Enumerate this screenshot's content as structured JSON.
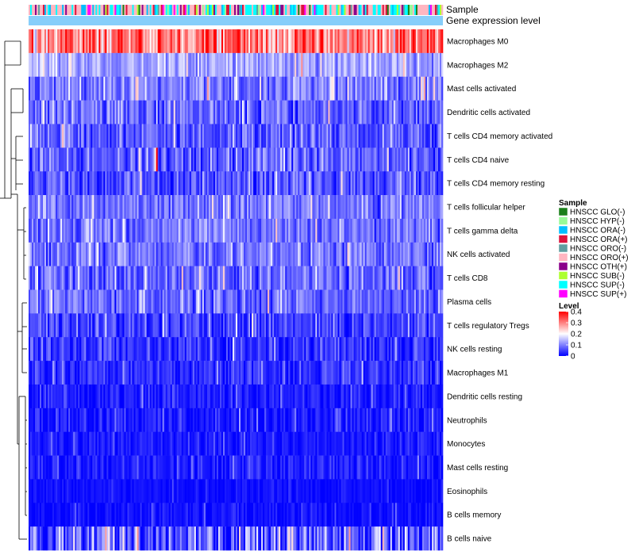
{
  "chart_data": {
    "type": "heatmap",
    "annotation_tracks": [
      {
        "name": "Sample"
      },
      {
        "name": "Gene expression level"
      }
    ],
    "rows": [
      {
        "label": "Macrophages M0",
        "mean": 0.3,
        "spread": 0.12,
        "base": 0.0,
        "highlight": [
          {
            "col": 56,
            "value": 0.4
          }
        ]
      },
      {
        "label": "Macrophages M2",
        "mean": 0.13,
        "spread": 0.06,
        "base": 0.0
      },
      {
        "label": "Mast cells activated",
        "mean": 0.1,
        "spread": 0.07,
        "base": 0.0
      },
      {
        "label": "Dendritic cells activated",
        "mean": 0.08,
        "spread": 0.07,
        "base": 0.0
      },
      {
        "label": "T cells CD4 memory activated",
        "mean": 0.07,
        "spread": 0.07,
        "base": 0.0
      },
      {
        "label": "T cells CD4 naive",
        "mean": 0.07,
        "spread": 0.07,
        "base": 0.0,
        "highlight": [
          {
            "col": 80,
            "value": 0.4
          }
        ]
      },
      {
        "label": "T cells CD4 memory resting",
        "mean": 0.06,
        "spread": 0.07,
        "base": 0.0
      },
      {
        "label": "T cells follicular helper",
        "mean": 0.09,
        "spread": 0.06,
        "base": 0.0
      },
      {
        "label": "T cells gamma delta",
        "mean": 0.09,
        "spread": 0.06,
        "base": 0.0
      },
      {
        "label": "NK cells activated",
        "mean": 0.09,
        "spread": 0.06,
        "base": 0.0
      },
      {
        "label": "T cells CD8",
        "mean": 0.08,
        "spread": 0.07,
        "base": 0.0
      },
      {
        "label": "Plasma cells",
        "mean": 0.08,
        "spread": 0.06,
        "base": 0.0
      },
      {
        "label": "T cells regulatory  Tregs",
        "mean": 0.05,
        "spread": 0.06,
        "base": 0.0
      },
      {
        "label": "NK cells resting",
        "mean": 0.04,
        "spread": 0.05,
        "base": 0.0
      },
      {
        "label": "Macrophages M1",
        "mean": 0.04,
        "spread": 0.05,
        "base": 0.0
      },
      {
        "label": "Dendritic cells resting",
        "mean": 0.02,
        "spread": 0.04,
        "base": 0.0
      },
      {
        "label": "Neutrophils",
        "mean": 0.02,
        "spread": 0.04,
        "base": 0.0
      },
      {
        "label": "Monocytes",
        "mean": 0.02,
        "spread": 0.03,
        "base": 0.0
      },
      {
        "label": "Mast cells resting",
        "mean": 0.02,
        "spread": 0.04,
        "base": 0.0
      },
      {
        "label": "Eosinophils",
        "mean": 0.01,
        "spread": 0.02,
        "base": 0.0
      },
      {
        "label": "B cells memory",
        "mean": 0.01,
        "spread": 0.03,
        "base": 0.0
      },
      {
        "label": "B cells naive",
        "mean": 0.07,
        "spread": 0.12,
        "base": 0.0
      }
    ],
    "n_columns": 260,
    "color_scale": {
      "title": "Level",
      "domain": [
        0,
        0.4
      ],
      "stops": [
        {
          "value": 0,
          "color": "#0000ff"
        },
        {
          "value": 0.2,
          "color": "#ffffff"
        },
        {
          "value": 0.4,
          "color": "#ff0000"
        }
      ],
      "ticks": [
        "0",
        "0.1",
        "0.2",
        "0.3",
        "0.4"
      ]
    },
    "sample_legend": {
      "title": "Sample",
      "items": [
        {
          "label": "HNSCC GLO(-)",
          "color": "#1a7f1a"
        },
        {
          "label": "HNSCC HYP(-)",
          "color": "#98fb98"
        },
        {
          "label": "HNSCC ORA(-)",
          "color": "#00bfff"
        },
        {
          "label": "HNSCC ORA(+)",
          "color": "#dc143c"
        },
        {
          "label": "HNSCC ORO(-)",
          "color": "#5f9ea0"
        },
        {
          "label": "HNSCC ORO(+)",
          "color": "#ffb6c1"
        },
        {
          "label": "HNSCC OTH(+)",
          "color": "#8b008b"
        },
        {
          "label": "HNSCC SUB(-)",
          "color": "#adff2f"
        },
        {
          "label": "HNSCC SUP(-)",
          "color": "#00ffff"
        },
        {
          "label": "HNSCC SUP(+)",
          "color": "#ff00ff"
        }
      ]
    },
    "expression_track_color": "#87cefa",
    "sample_pattern_weights": [
      1,
      1,
      2,
      2,
      1,
      9,
      1,
      1,
      6,
      1
    ]
  }
}
